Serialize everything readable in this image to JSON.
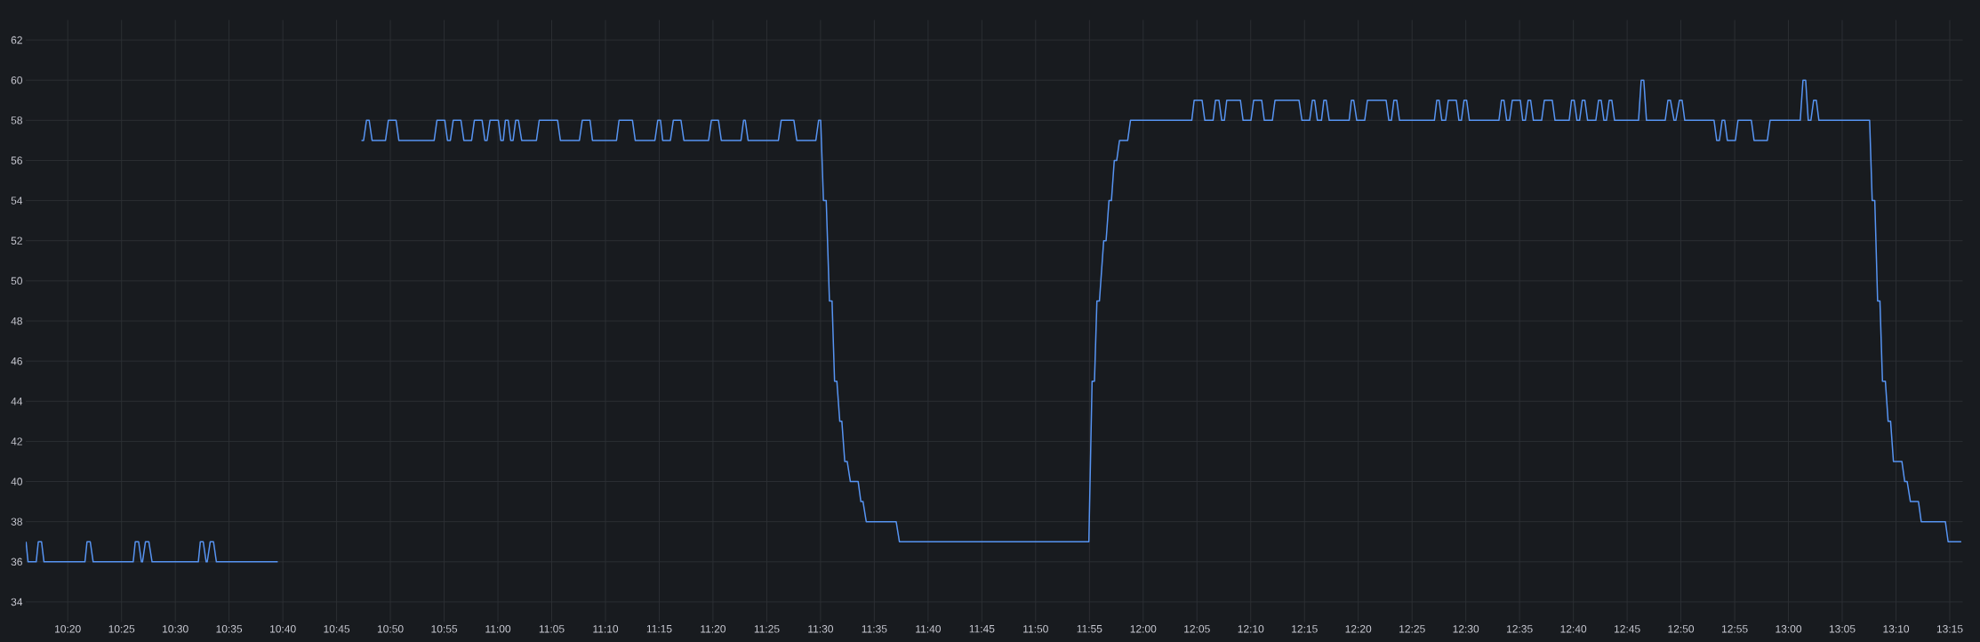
{
  "chart_data": {
    "type": "line",
    "xlim": [
      10.2683,
      13.27
    ],
    "ylim": [
      33,
      63
    ],
    "xticks": [
      {
        "value": 10.3333,
        "label": "10:20"
      },
      {
        "value": 10.4167,
        "label": "10:25"
      },
      {
        "value": 10.5,
        "label": "10:30"
      },
      {
        "value": 10.5833,
        "label": "10:35"
      },
      {
        "value": 10.6667,
        "label": "10:40"
      },
      {
        "value": 10.75,
        "label": "10:45"
      },
      {
        "value": 10.8333,
        "label": "10:50"
      },
      {
        "value": 10.9167,
        "label": "10:55"
      },
      {
        "value": 11,
        "label": "11:00"
      },
      {
        "value": 11.0833,
        "label": "11:05"
      },
      {
        "value": 11.1667,
        "label": "11:10"
      },
      {
        "value": 11.25,
        "label": "11:15"
      },
      {
        "value": 11.3333,
        "label": "11:20"
      },
      {
        "value": 11.4167,
        "label": "11:25"
      },
      {
        "value": 11.5,
        "label": "11:30"
      },
      {
        "value": 11.5833,
        "label": "11:35"
      },
      {
        "value": 11.6667,
        "label": "11:40"
      },
      {
        "value": 11.75,
        "label": "11:45"
      },
      {
        "value": 11.8333,
        "label": "11:50"
      },
      {
        "value": 11.9167,
        "label": "11:55"
      },
      {
        "value": 12,
        "label": "12:00"
      },
      {
        "value": 12.0833,
        "label": "12:05"
      },
      {
        "value": 12.1667,
        "label": "12:10"
      },
      {
        "value": 12.25,
        "label": "12:15"
      },
      {
        "value": 12.3333,
        "label": "12:20"
      },
      {
        "value": 12.4167,
        "label": "12:25"
      },
      {
        "value": 12.5,
        "label": "12:30"
      },
      {
        "value": 12.5833,
        "label": "12:35"
      },
      {
        "value": 12.6667,
        "label": "12:40"
      },
      {
        "value": 12.75,
        "label": "12:45"
      },
      {
        "value": 12.8333,
        "label": "12:50"
      },
      {
        "value": 12.9167,
        "label": "12:55"
      },
      {
        "value": 13,
        "label": "13:00"
      },
      {
        "value": 13.0833,
        "label": "13:05"
      },
      {
        "value": 13.1667,
        "label": "13:10"
      },
      {
        "value": 13.25,
        "label": "13:15"
      }
    ],
    "yticks": [
      34,
      36,
      38,
      40,
      42,
      44,
      46,
      48,
      50,
      52,
      54,
      56,
      58,
      60,
      62
    ],
    "grid": true,
    "x": [
      10.2687,
      10.2718,
      10.2845,
      10.2877,
      10.2927,
      10.2965,
      10.36,
      10.3632,
      10.3682,
      10.3727,
      10.4348,
      10.438,
      10.4432,
      10.4475,
      10.4492,
      10.4538,
      10.459,
      10.464,
      10.5357,
      10.5388,
      10.5433,
      10.5478,
      10.5495,
      10.5542,
      10.5592,
      10.5637,
      10.6588,
      10.72,
      10.7885,
      10.7918,
      10.7963,
      10.8005,
      10.805,
      10.8258,
      10.8302,
      10.8422,
      10.8465,
      10.9012,
      10.9055,
      10.9177,
      10.9218,
      10.9263,
      10.9307,
      10.9427,
      10.9472,
      10.9592,
      10.9635,
      10.9755,
      10.9798,
      10.9832,
      10.9877,
      11.0007,
      11.0045,
      11.0083,
      11.0115,
      11.016,
      11.0198,
      11.0235,
      11.0275,
      11.0318,
      11.0368,
      11.0597,
      11.064,
      11.0925,
      11.0968,
      11.1263,
      11.1307,
      11.1428,
      11.1465,
      11.1838,
      11.1877,
      11.2085,
      11.2128,
      11.2433,
      11.2477,
      11.252,
      11.2553,
      11.2673,
      11.2718,
      11.2837,
      11.2882,
      11.3265,
      11.3308,
      11.3418,
      11.3462,
      11.3767,
      11.3807,
      11.3833,
      11.3877,
      11.4347,
      11.439,
      11.4587,
      11.4632,
      11.4927,
      11.497,
      11.5002,
      11.5045,
      11.5088,
      11.5138,
      11.5178,
      11.5217,
      11.5253,
      11.5298,
      11.533,
      11.5375,
      11.5413,
      11.5462,
      11.5583,
      11.5625,
      11.5658,
      11.5708,
      11.6172,
      11.6222,
      11.9158,
      11.9208,
      11.9245,
      11.9283,
      11.9322,
      11.9388,
      11.9425,
      11.947,
      11.9508,
      11.9552,
      11.959,
      11.9633,
      11.976,
      11.9803,
      12.0753,
      12.079,
      12.0913,
      12.0955,
      12.1083,
      12.112,
      12.1175,
      12.1217,
      12.1258,
      12.1295,
      12.1507,
      12.1548,
      12.167,
      12.1712,
      12.1837,
      12.1877,
      12.2002,
      12.2043,
      12.2415,
      12.246,
      12.258,
      12.2622,
      12.2658,
      12.27,
      12.2763,
      12.28,
      12.2837,
      12.2883,
      12.3192,
      12.3227,
      12.3263,
      12.331,
      12.3433,
      12.3475,
      12.3765,
      12.3807,
      12.3847,
      12.3885,
      12.393,
      12.3972,
      12.4513,
      12.455,
      12.4587,
      12.4628,
      12.4687,
      12.4728,
      12.4853,
      12.4893,
      12.4932,
      12.4972,
      12.5013,
      12.5055,
      12.5513,
      12.5552,
      12.5592,
      12.5633,
      12.5678,
      12.572,
      12.5845,
      12.5882,
      12.5923,
      12.5965,
      12.6005,
      12.6047,
      12.6175,
      12.6217,
      12.634,
      12.6382,
      12.6602,
      12.6638,
      12.668,
      12.6722,
      12.6763,
      12.6805,
      12.6845,
      12.6887,
      12.7015,
      12.7057,
      12.7098,
      12.714,
      12.718,
      12.7222,
      12.7263,
      12.7305,
      12.7677,
      12.7718,
      12.7758,
      12.78,
      12.809,
      12.8132,
      12.8172,
      12.8227,
      12.8255,
      12.831,
      12.8352,
      12.8393,
      12.8847,
      12.8888,
      12.893,
      12.8972,
      12.9012,
      12.9053,
      12.9178,
      12.9218,
      12.9425,
      12.9467,
      12.9673,
      12.9715,
      13.0183,
      13.0225,
      13.0267,
      13.0307,
      13.0348,
      13.039,
      13.0432,
      13.0472,
      13.1258,
      13.1298,
      13.1338,
      13.1382,
      13.1418,
      13.1457,
      13.1502,
      13.1545,
      13.1583,
      13.1627,
      13.1758,
      13.1802,
      13.184,
      13.189,
      13.2015,
      13.2058,
      13.2432,
      13.2475,
      13.2678
    ],
    "series": [
      {
        "color": "#5794f2",
        "values": [
          37,
          36,
          36,
          37,
          37,
          36,
          36,
          37,
          37,
          36,
          36,
          37,
          37,
          36,
          36,
          37,
          37,
          36,
          36,
          37,
          37,
          36,
          36,
          37,
          37,
          36,
          36,
          null,
          57,
          57,
          58,
          58,
          57,
          57,
          58,
          58,
          57,
          57,
          58,
          58,
          57,
          57,
          58,
          58,
          57,
          57,
          58,
          58,
          57,
          57,
          58,
          58,
          57,
          57,
          58,
          58,
          57,
          57,
          58,
          58,
          57,
          57,
          58,
          58,
          57,
          57,
          58,
          58,
          57,
          57,
          58,
          58,
          57,
          57,
          58,
          58,
          57,
          57,
          58,
          58,
          57,
          57,
          58,
          58,
          57,
          57,
          58,
          58,
          57,
          57,
          58,
          58,
          57,
          57,
          58,
          58,
          54,
          54,
          49,
          49,
          45,
          45,
          43,
          43,
          41,
          41,
          40,
          40,
          39,
          39,
          38,
          38,
          37,
          37,
          45,
          45,
          49,
          49,
          52,
          52,
          54,
          54,
          56,
          56,
          57,
          57,
          58,
          58,
          59,
          59,
          58,
          58,
          59,
          59,
          58,
          58,
          59,
          59,
          58,
          58,
          59,
          59,
          58,
          58,
          59,
          59,
          58,
          58,
          59,
          59,
          58,
          58,
          59,
          59,
          58,
          58,
          59,
          59,
          58,
          58,
          59,
          59,
          58,
          58,
          59,
          59,
          58,
          58,
          59,
          59,
          58,
          58,
          59,
          59,
          58,
          58,
          59,
          59,
          58,
          58,
          59,
          59,
          58,
          58,
          59,
          59,
          58,
          58,
          59,
          59,
          58,
          58,
          59,
          59,
          58,
          58,
          59,
          59,
          58,
          58,
          59,
          59,
          58,
          58,
          59,
          59,
          58,
          58,
          59,
          59,
          58,
          58,
          60,
          60,
          58,
          58,
          59,
          59,
          58,
          58,
          59,
          59,
          58,
          58,
          57,
          57,
          58,
          58,
          57,
          57,
          58,
          58,
          57,
          57,
          58,
          58,
          60,
          60,
          58,
          58,
          59,
          59,
          58,
          58,
          54,
          54,
          49,
          49,
          45,
          45,
          43,
          43,
          41,
          41,
          40,
          40,
          39,
          39,
          38,
          38,
          37,
          37
        ]
      }
    ]
  }
}
